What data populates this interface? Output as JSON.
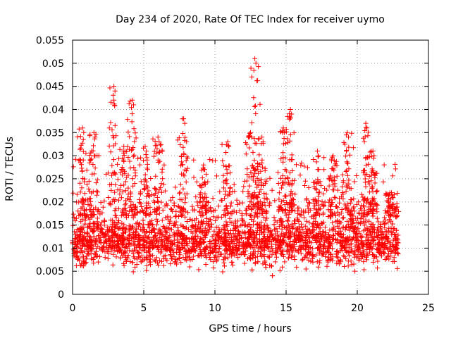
{
  "chart_data": {
    "type": "scatter",
    "title": "Day 234 of 2020, Rate Of TEC Index for receiver uymo",
    "xlabel": "GPS time / hours",
    "ylabel": "ROTI / TECUs",
    "xlim": [
      0,
      25
    ],
    "ylim": [
      0,
      0.055
    ],
    "xticks": [
      0,
      5,
      10,
      15,
      20,
      25
    ],
    "yticks": [
      0,
      0.005,
      0.01,
      0.015,
      0.02,
      0.025,
      0.03,
      0.035,
      0.04,
      0.045,
      0.05,
      0.055
    ],
    "xtick_labels": [
      "0",
      "5",
      "10",
      "15",
      "20",
      "25"
    ],
    "ytick_labels": [
      "0",
      "0.005",
      "0.01",
      "0.015",
      "0.02",
      "0.025",
      "0.03",
      "0.035",
      "0.04",
      "0.045",
      "0.05",
      "0.055"
    ],
    "grid": true,
    "marker": "+",
    "color": "#ff0000",
    "data_x_range": [
      0,
      22.9
    ],
    "typical_band": [
      0.005,
      0.02
    ],
    "series": [
      {
        "name": "ROTI",
        "peaks": [
          {
            "x": 0.7,
            "y": 0.036
          },
          {
            "x": 1.5,
            "y": 0.035
          },
          {
            "x": 2.9,
            "y": 0.045
          },
          {
            "x": 3.6,
            "y": 0.032
          },
          {
            "x": 4.2,
            "y": 0.042
          },
          {
            "x": 5.1,
            "y": 0.032
          },
          {
            "x": 6.0,
            "y": 0.034
          },
          {
            "x": 7.8,
            "y": 0.038
          },
          {
            "x": 9.2,
            "y": 0.028
          },
          {
            "x": 10.9,
            "y": 0.033
          },
          {
            "x": 12.5,
            "y": 0.035
          },
          {
            "x": 12.8,
            "y": 0.051
          },
          {
            "x": 13.3,
            "y": 0.034
          },
          {
            "x": 14.8,
            "y": 0.036
          },
          {
            "x": 15.3,
            "y": 0.04
          },
          {
            "x": 17.2,
            "y": 0.031
          },
          {
            "x": 18.3,
            "y": 0.03
          },
          {
            "x": 19.3,
            "y": 0.035
          },
          {
            "x": 20.6,
            "y": 0.037
          },
          {
            "x": 21.1,
            "y": 0.031
          },
          {
            "x": 22.4,
            "y": 0.022
          }
        ]
      }
    ]
  }
}
